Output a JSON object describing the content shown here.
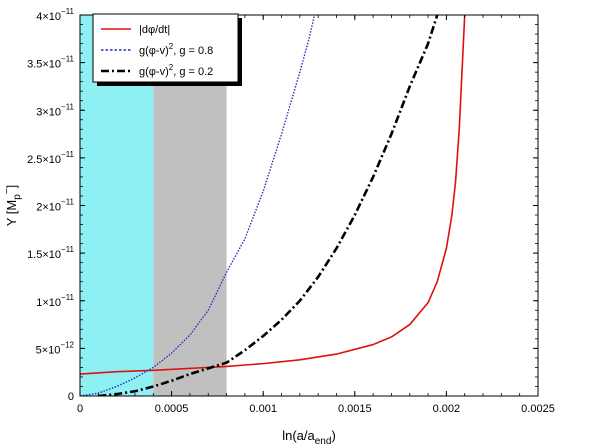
{
  "chart_data": {
    "type": "line",
    "xlabel": "ln(a/a_end)",
    "ylabel": "Y [M_p^-]",
    "xlim": [
      0,
      0.0025
    ],
    "ylim": [
      0,
      4e-11
    ],
    "x_ticks": [
      0,
      0.0005,
      0.001,
      0.0015,
      0.002,
      0.0025
    ],
    "x_tick_labels": [
      "0",
      "0.0005",
      "0.001",
      "0.0015",
      "0.002",
      "0.0025"
    ],
    "y_ticks": [
      0,
      5e-12,
      1e-11,
      1.5e-11,
      2e-11,
      2.5e-11,
      3e-11,
      3.5e-11,
      4e-11
    ],
    "y_tick_labels": [
      {
        "mantissa": "0",
        "exp": ""
      },
      {
        "mantissa": "5×10",
        "exp": "−12"
      },
      {
        "mantissa": "1×10",
        "exp": "−11"
      },
      {
        "mantissa": "1.5×10",
        "exp": "−11"
      },
      {
        "mantissa": "2×10",
        "exp": "−11"
      },
      {
        "mantissa": "2.5×10",
        "exp": "−11"
      },
      {
        "mantissa": "3×10",
        "exp": "−11"
      },
      {
        "mantissa": "3.5×10",
        "exp": "−11"
      },
      {
        "mantissa": "4×10",
        "exp": "−11"
      }
    ],
    "regions": [
      {
        "x0": 0,
        "x1": 0.0004,
        "color": "#8ef0f2"
      },
      {
        "x0": 0.0004,
        "x1": 0.0008,
        "color": "#c0c0c0"
      }
    ],
    "legend_placement": "top-left",
    "series": [
      {
        "name": "|dφ/dt|",
        "color": "#dd1111",
        "dash": "solid",
        "x": [
          0,
          0.0002,
          0.0004,
          0.0006,
          0.0008,
          0.001,
          0.0012,
          0.0014,
          0.0016,
          0.0017,
          0.0018,
          0.0019,
          0.00195,
          0.002,
          0.00203,
          0.00205,
          0.00207,
          0.00208,
          0.00209,
          0.0021
        ],
        "y": [
          2.3e-12,
          2.55e-12,
          2.7e-12,
          2.9e-12,
          3.1e-12,
          3.4e-12,
          3.8e-12,
          4.4e-12,
          5.4e-12,
          6.2e-12,
          7.5e-12,
          9.8e-12,
          1.2e-11,
          1.55e-11,
          1.9e-11,
          2.25e-11,
          2.8e-11,
          3.2e-11,
          3.6e-11,
          4e-11
        ]
      },
      {
        "name": "g(φ-v)², g = 0.8",
        "color": "#2233bb",
        "dash": "dot",
        "x": [
          0,
          0.0001,
          0.0002,
          0.0003,
          0.0004,
          0.0005,
          0.0006,
          0.0007,
          0.0008,
          0.0009,
          0.001,
          0.0011,
          0.0012,
          0.00125,
          0.00128
        ],
        "y": [
          0,
          3e-13,
          1e-12,
          1.9e-12,
          3e-12,
          4.5e-12,
          6.4e-12,
          9e-12,
          1.3e-11,
          1.65e-11,
          2.15e-11,
          2.75e-11,
          3.4e-11,
          3.75e-11,
          4e-11
        ]
      },
      {
        "name": "g(φ-v)², g = 0.2",
        "color": "#000000",
        "dash": "dashdot",
        "x": [
          0.0001,
          0.0002,
          0.0003,
          0.0004,
          0.0005,
          0.0006,
          0.0007,
          0.0008,
          0.0009,
          0.001,
          0.0011,
          0.0012,
          0.0013,
          0.0014,
          0.0015,
          0.0016,
          0.0017,
          0.0018,
          0.0019,
          0.00195
        ],
        "y": [
          0,
          2e-13,
          5e-13,
          1e-12,
          1.6e-12,
          2.3e-12,
          2.9e-12,
          3.5e-12,
          4.8e-12,
          6.3e-12,
          8e-12,
          1e-11,
          1.25e-11,
          1.55e-11,
          1.9e-11,
          2.3e-11,
          2.75e-11,
          3.25e-11,
          3.7e-11,
          4e-11
        ]
      }
    ]
  }
}
